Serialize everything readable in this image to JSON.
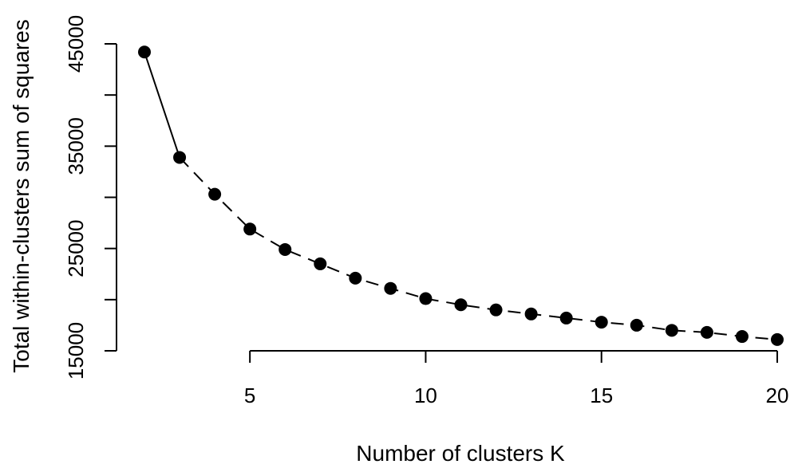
{
  "chart_data": {
    "type": "line",
    "xlabel": "Number of clusters K",
    "ylabel": "Total within-clusters sum of squares",
    "xlim": [
      2,
      20
    ],
    "ylim": [
      15000,
      45000
    ],
    "x_ticks": [
      5,
      10,
      15,
      20
    ],
    "y_ticks": [
      15000,
      20000,
      25000,
      30000,
      35000,
      40000,
      45000
    ],
    "y_tick_labels": [
      {
        "value": 15000,
        "label": "15000"
      },
      {
        "value": 25000,
        "label": "25000"
      },
      {
        "value": 35000,
        "label": "35000"
      },
      {
        "value": 45000,
        "label": "45000"
      }
    ],
    "grid": false,
    "line_style": {
      "first_segment": "solid",
      "remaining": "dashed"
    },
    "series": [
      {
        "x": [
          2,
          3,
          4,
          5,
          6,
          7,
          8,
          9,
          10,
          11,
          12,
          13,
          14,
          15,
          16,
          17,
          18,
          19,
          20
        ],
        "y": [
          44200,
          33900,
          30300,
          26900,
          24900,
          23500,
          22100,
          21100,
          20100,
          19500,
          19000,
          18600,
          18200,
          17800,
          17500,
          17000,
          16800,
          16400,
          16100
        ]
      }
    ]
  }
}
